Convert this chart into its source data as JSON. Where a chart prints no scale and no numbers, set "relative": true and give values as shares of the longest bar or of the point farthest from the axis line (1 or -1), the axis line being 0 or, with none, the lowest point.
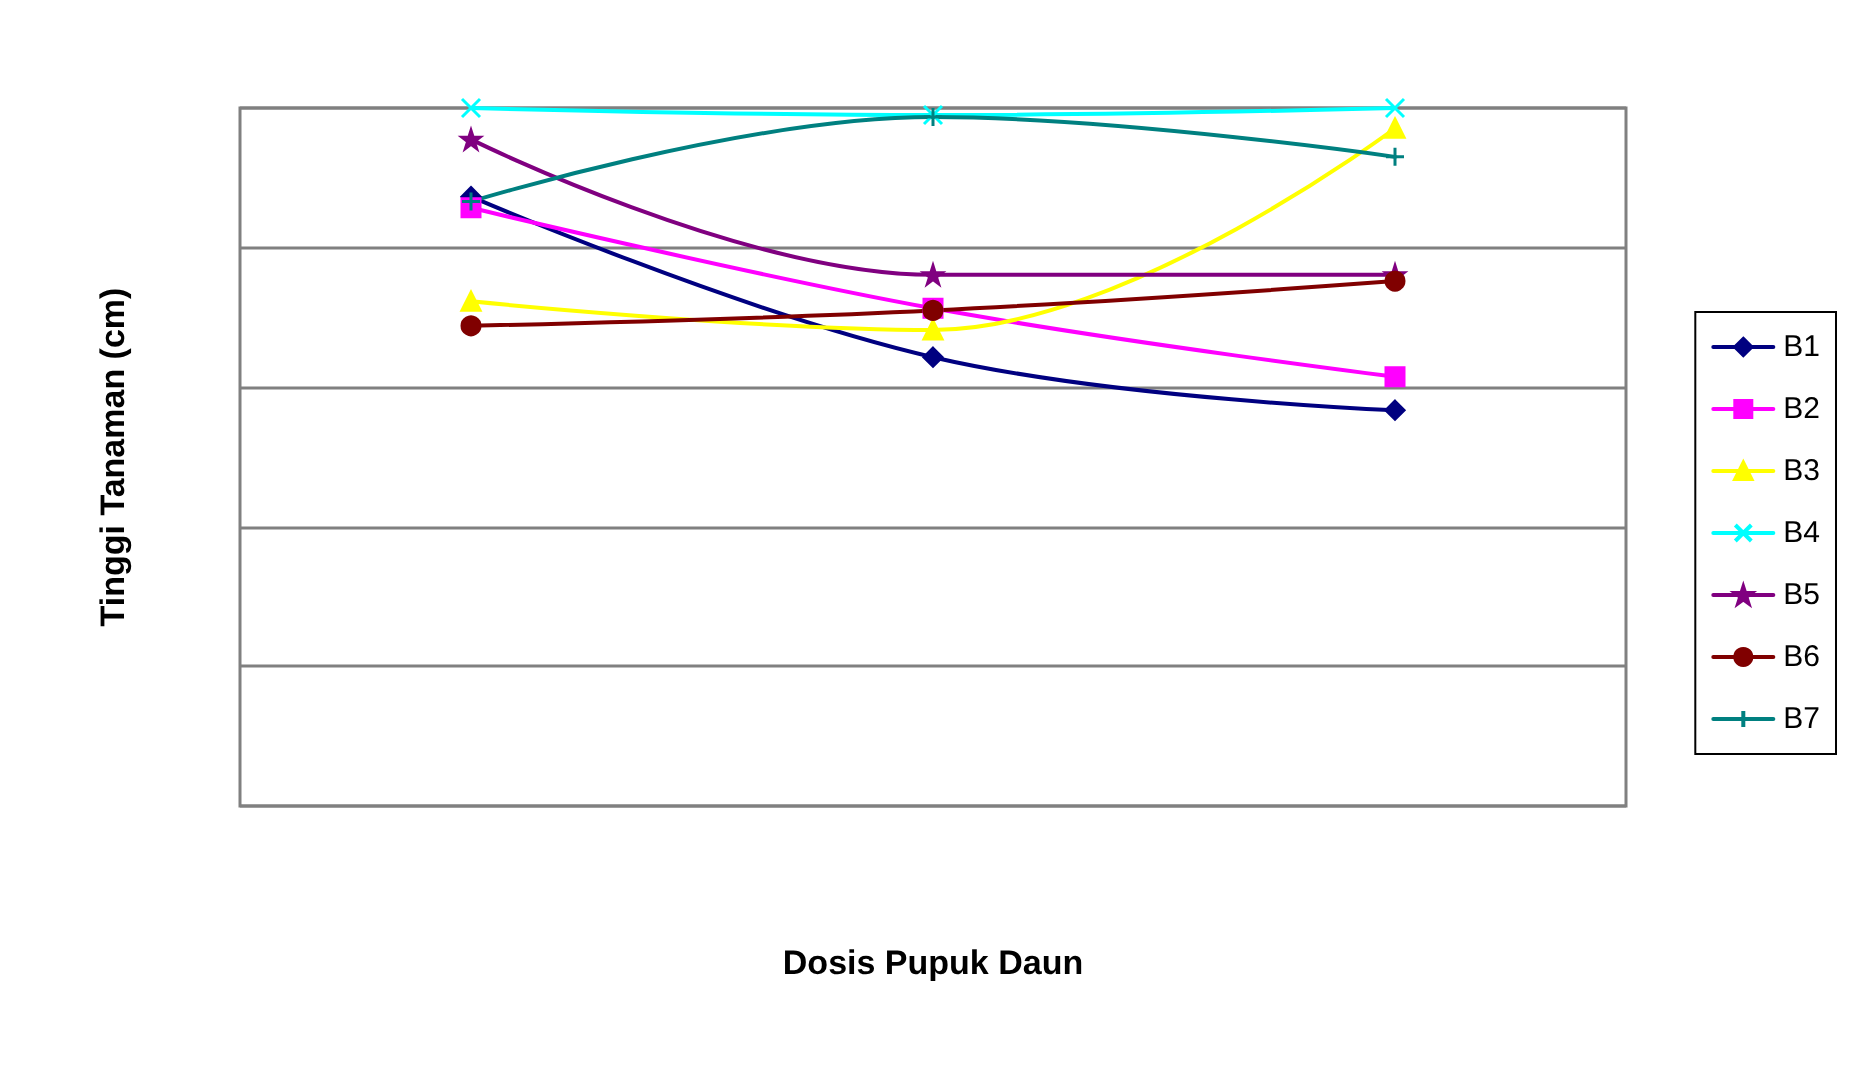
{
  "chart_data": {
    "type": "line",
    "xlabel": "Dosis Pupuk Daun",
    "ylabel": "Tinggi Tanaman (cm)",
    "categories": [
      null,
      null,
      null
    ],
    "relative": true,
    "grid": "y",
    "legend": "right",
    "line_style": "solid",
    "series": [
      {
        "name": "B1",
        "color": "#000080",
        "marker": "diamond",
        "values": [
          0.873,
          0.643,
          0.567
        ]
      },
      {
        "name": "B2",
        "color": "#ff00ff",
        "marker": "square",
        "values": [
          0.857,
          0.713,
          0.615
        ]
      },
      {
        "name": "B3",
        "color": "#ffff00",
        "marker": "triangle",
        "values": [
          0.723,
          0.682,
          0.971
        ]
      },
      {
        "name": "B4",
        "color": "#00ffff",
        "marker": "cross",
        "values": [
          1,
          0.99,
          1
        ]
      },
      {
        "name": "B5",
        "color": "#800080",
        "marker": "star",
        "values": [
          0.955,
          0.761,
          0.761
        ]
      },
      {
        "name": "B6",
        "color": "#800000",
        "marker": "circle",
        "values": [
          0.688,
          0.71,
          0.752
        ]
      },
      {
        "name": "B7",
        "color": "#008080",
        "marker": "plus",
        "values": [
          0.866,
          0.987,
          0.93
        ]
      }
    ]
  }
}
